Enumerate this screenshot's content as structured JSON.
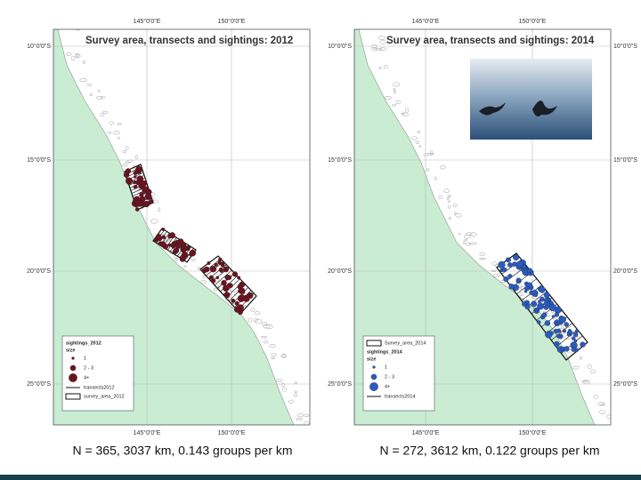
{
  "panels": [
    {
      "title": "Survey area, transects and sightings: 2012",
      "lon_labels": [
        "145°0'0\"E",
        "150°0'0\"E"
      ],
      "lat_labels": [
        "10°0'0\"S",
        "15°0'0\"S",
        "20°0'0\"S",
        "25°0'0\"S"
      ],
      "legend": {
        "layer": "sightings_2012",
        "field": "size",
        "classes": [
          "1",
          "2 - 3",
          "4+"
        ],
        "transects": "transects2012",
        "survey_area": "survey_area_2012"
      },
      "caption": "N = 365, 3037 km, 0.143 groups per km"
    },
    {
      "title": "Survey area, transects and sightings: 2014",
      "lon_labels": [
        "145°0'0\"E",
        "150°0'0\"E"
      ],
      "lat_labels": [
        "10°0'0\"S",
        "15°0'0\"S",
        "20°0'0\"S",
        "25°0'0\"S"
      ],
      "legend": {
        "survey_area": "Survey_area_2014",
        "layer": "sightings_2014",
        "field": "size",
        "classes": [
          "1",
          "2 - 3",
          "4+"
        ],
        "transects": "transects2014"
      },
      "caption": "N = 272, 3612 km, 0.122 groups per km"
    }
  ]
}
